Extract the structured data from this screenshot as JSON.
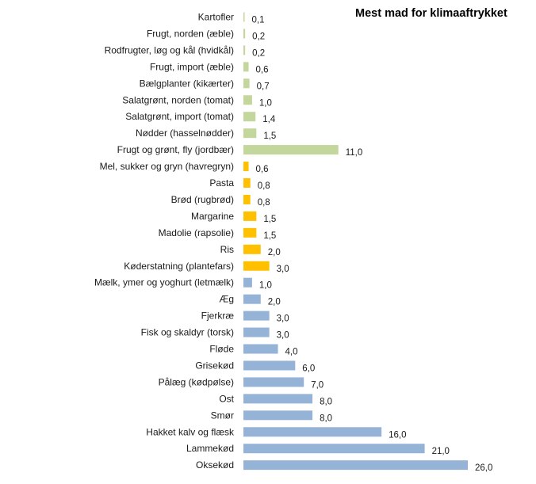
{
  "chart_data": {
    "type": "bar",
    "orientation": "horizontal",
    "title": "Mest mad for klimaaftrykket",
    "xlabel": "",
    "ylabel": "",
    "xlim": [
      0,
      26
    ],
    "grid": false,
    "legend": "none",
    "colors": {
      "produce": "#c3d69b",
      "grains_oils": "#ffc000",
      "animal": "#95b3d7"
    },
    "categories": [
      "Kartofler",
      "Frugt, norden (æble)",
      "Rodfrugter, løg og kål (hvidkål)",
      "Frugt, import (æble)",
      "Bælgplanter (kikærter)",
      "Salatgrønt, norden (tomat)",
      "Salatgrønt, import (tomat)",
      "Nødder (hasselnødder)",
      "Frugt og grønt, fly (jordbær)",
      "Mel, sukker og gryn (havregryn)",
      "Pasta",
      "Brød (rugbrød)",
      "Margarine",
      "Madolie (rapsolie)",
      "Ris",
      "Køderstatning (plantefars)",
      "Mælk, ymer og yoghurt (letmælk)",
      "Æg",
      "Fjerkræ",
      "Fisk og skaldyr (torsk)",
      "Fløde",
      "Grisekød",
      "Pålæg (kødpølse)",
      "Ost",
      "Smør",
      "Hakket kalv og flæsk",
      "Lammekød",
      "Oksekød"
    ],
    "values": [
      0.1,
      0.2,
      0.2,
      0.6,
      0.7,
      1.0,
      1.4,
      1.5,
      11.0,
      0.6,
      0.8,
      0.8,
      1.5,
      1.5,
      2.0,
      3.0,
      1.0,
      2.0,
      3.0,
      3.0,
      4.0,
      6.0,
      7.0,
      8.0,
      8.0,
      16.0,
      21.0,
      26.0
    ],
    "value_labels": [
      "0,1",
      "0,2",
      "0,2",
      "0,6",
      "0,7",
      "1,0",
      "1,4",
      "1,5",
      "11,0",
      "0,6",
      "0,8",
      "0,8",
      "1,5",
      "1,5",
      "2,0",
      "3,0",
      "1,0",
      "2,0",
      "3,0",
      "3,0",
      "4,0",
      "6,0",
      "7,0",
      "8,0",
      "8,0",
      "16,0",
      "21,0",
      "26,0"
    ],
    "groups": [
      "produce",
      "produce",
      "produce",
      "produce",
      "produce",
      "produce",
      "produce",
      "produce",
      "produce",
      "grains_oils",
      "grains_oils",
      "grains_oils",
      "grains_oils",
      "grains_oils",
      "grains_oils",
      "grains_oils",
      "animal",
      "animal",
      "animal",
      "animal",
      "animal",
      "animal",
      "animal",
      "animal",
      "animal",
      "animal",
      "animal",
      "animal"
    ]
  }
}
